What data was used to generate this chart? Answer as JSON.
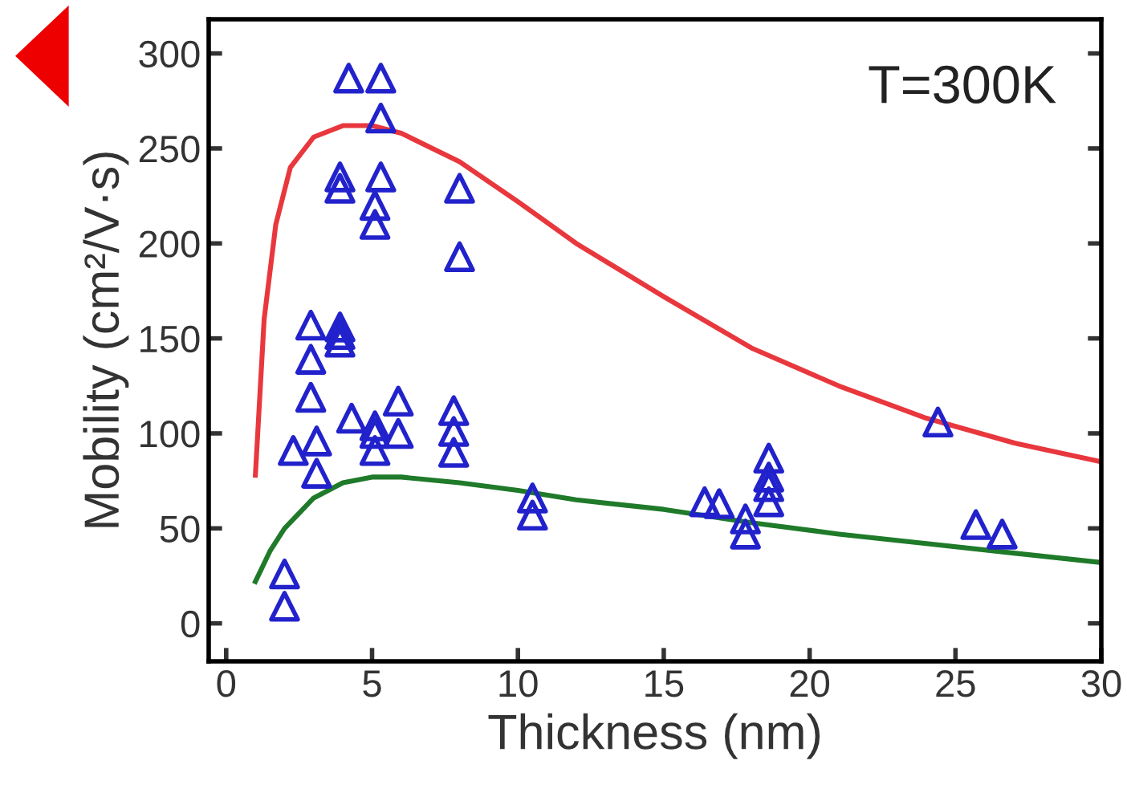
{
  "chart_data": {
    "type": "scatter",
    "xlabel": "Thickness (nm)",
    "ylabel": "Mobility (cm²/V·s)",
    "annotations": [
      "T=300K"
    ],
    "xlim": [
      -0.6,
      30
    ],
    "ylim": [
      -20,
      318
    ],
    "xticks": [
      0,
      5,
      10,
      15,
      20,
      25,
      30
    ],
    "yticks": [
      0,
      50,
      100,
      150,
      200,
      250,
      300
    ],
    "grid": false,
    "legend": false,
    "series": [
      {
        "color": "#2222cc",
        "marker": "triangle",
        "x": [
          4.2,
          5.3,
          5.3,
          3.9,
          3.9,
          5.3,
          5.1,
          5.1,
          8.0,
          8.0,
          2.9,
          3.9,
          3.9,
          3.9,
          2.9,
          2.9,
          4.3,
          2.3,
          3.1,
          3.1,
          5.1,
          5.1,
          5.1,
          5.9,
          5.9,
          7.8,
          7.8,
          7.8,
          2.0,
          2.0,
          10.5,
          10.5,
          16.4,
          16.9,
          17.8,
          17.8,
          18.6,
          18.6,
          18.6,
          18.6,
          24.4,
          25.7,
          26.6
        ],
        "values": [
          287,
          287,
          266,
          235,
          229,
          235,
          220,
          210,
          229,
          193,
          157,
          152,
          148,
          156,
          139,
          119,
          108,
          91,
          96,
          79,
          104,
          100,
          91,
          100,
          117,
          112,
          101,
          90,
          26,
          9,
          66,
          57,
          64,
          63,
          55,
          47,
          87,
          77,
          72,
          64,
          106,
          52,
          47
        ]
      },
      {
        "type": "line",
        "color": "#e8383d",
        "marker": "none",
        "x": [
          1.0,
          1.3,
          1.7,
          2.2,
          3,
          4,
          5,
          6,
          8,
          10,
          12,
          15,
          18,
          21,
          24,
          27,
          30
        ],
        "values": [
          78,
          160,
          210,
          240,
          256,
          262,
          262,
          258,
          243,
          222,
          200,
          172,
          145,
          125,
          108,
          95,
          85
        ]
      },
      {
        "type": "line",
        "color": "#1f7a2a",
        "marker": "none",
        "x": [
          1,
          1.5,
          2,
          3,
          4,
          5,
          6,
          8,
          10,
          12,
          15,
          18,
          21,
          24,
          27,
          30
        ],
        "values": [
          22,
          38,
          50,
          66,
          74,
          77,
          77,
          74,
          70,
          65,
          60,
          53,
          47,
          42,
          37,
          32
        ]
      }
    ]
  }
}
